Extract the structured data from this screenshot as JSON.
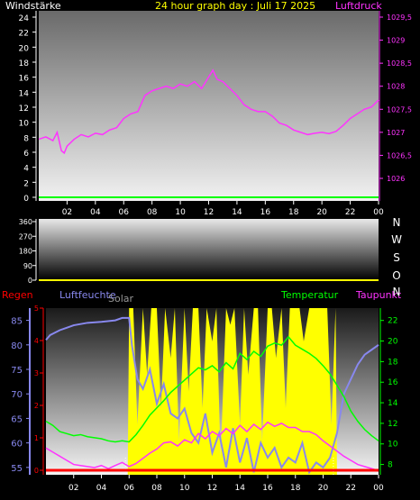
{
  "colors": {
    "wind": "#00ff00",
    "pressure": "#ff33ff",
    "rain": "#ff0000",
    "humidity": "#8888ee",
    "solar": "#ffff00",
    "temperature": "#00ff00",
    "dewpoint": "#ff33ff",
    "axis_white": "#ffffff",
    "yellow_text": "#ffff00"
  },
  "chart_data": [
    {
      "type": "line",
      "title": "24 hour graph day : Juli 17 2025",
      "left_label": "Windstärke",
      "right_label": "Luftdruck",
      "x_ticks": [
        "02",
        "04",
        "06",
        "08",
        "10",
        "12",
        "14",
        "16",
        "18",
        "20",
        "22",
        "00"
      ],
      "y_left_ticks": [
        "0",
        "2",
        "4",
        "6",
        "8",
        "10",
        "12",
        "14",
        "16",
        "18",
        "20",
        "22",
        "24"
      ],
      "y_left_range": [
        0,
        24
      ],
      "y_right_ticks": [
        "1026",
        "1026,5",
        "1027",
        "1027,5",
        "1028",
        "1028,5",
        "1029",
        "1029,5"
      ],
      "y_right_range": [
        1025.75,
        1029.6
      ],
      "grid": false,
      "series": [
        {
          "name": "Windstärke",
          "axis": "left",
          "color": "#00ff00",
          "x": [
            0,
            24
          ],
          "values": [
            0,
            0
          ]
        },
        {
          "name": "Luftdruck",
          "axis": "right",
          "color": "#ff33ff",
          "x": [
            0,
            0.5,
            1,
            1.3,
            1.6,
            1.8,
            2,
            2.5,
            3,
            3.5,
            4,
            4.5,
            5,
            5.5,
            6,
            6.5,
            7,
            7.5,
            8,
            8.5,
            9,
            9.5,
            10,
            10.5,
            11,
            11.5,
            12,
            12.3,
            12.6,
            13,
            13.5,
            14,
            14.5,
            15,
            15.5,
            16,
            16.5,
            17,
            17.5,
            18,
            18.5,
            19,
            19.5,
            20,
            20.5,
            21,
            21.5,
            22,
            22.5,
            23,
            23.5,
            24
          ],
          "values": [
            1026.85,
            1026.9,
            1026.82,
            1027.0,
            1026.6,
            1026.55,
            1026.7,
            1026.85,
            1026.95,
            1026.9,
            1026.98,
            1026.95,
            1027.05,
            1027.1,
            1027.3,
            1027.4,
            1027.45,
            1027.8,
            1027.9,
            1027.95,
            1028.0,
            1027.95,
            1028.05,
            1028.0,
            1028.1,
            1027.95,
            1028.2,
            1028.35,
            1028.15,
            1028.1,
            1027.95,
            1027.8,
            1027.6,
            1027.5,
            1027.45,
            1027.45,
            1027.35,
            1027.2,
            1027.15,
            1027.05,
            1027.0,
            1026.95,
            1026.98,
            1027.0,
            1026.97,
            1027.02,
            1027.15,
            1027.3,
            1027.4,
            1027.5,
            1027.55,
            1027.7
          ]
        }
      ]
    },
    {
      "type": "line",
      "title": "",
      "x_ticks": [],
      "y_left_ticks": [
        "0",
        "90",
        "180",
        "270",
        "360"
      ],
      "y_left_range": [
        0,
        360
      ],
      "y_right_ticks": [
        "N",
        "W",
        "S",
        "O",
        "N"
      ],
      "grid": false,
      "series": [
        {
          "name": "",
          "color": "#ffff00",
          "x": [
            0,
            24
          ],
          "values": [
            0,
            0
          ]
        }
      ]
    },
    {
      "type": "line",
      "title": "",
      "label_rain": "Regen",
      "label_humidity": "Luftfeuchte",
      "label_solar": "Solar",
      "label_temperature": "Temperatur",
      "label_dewpoint": "Taupunkt",
      "x_ticks": [
        "02",
        "04",
        "06",
        "08",
        "10",
        "12",
        "14",
        "16",
        "18",
        "20",
        "22",
        "00"
      ],
      "y_rain_ticks": [
        "0",
        "1",
        "2",
        "3",
        "4",
        "5"
      ],
      "y_humidity_ticks": [
        "55",
        "60",
        "65",
        "70",
        "75",
        "80",
        "85"
      ],
      "y_humidity_range": [
        53.5,
        87.5
      ],
      "y_temp_ticks": [
        "8",
        "10",
        "12",
        "14",
        "16",
        "18",
        "20",
        "22"
      ],
      "y_temp_range": [
        7,
        23.2
      ],
      "grid": false,
      "series": [
        {
          "name": "Regen",
          "axis": "rain",
          "color": "#ff0000",
          "x": [
            0,
            24
          ],
          "values": [
            0,
            0
          ]
        },
        {
          "name": "Solar",
          "axis": "solar",
          "color": "#ffff00",
          "x": [
            0,
            5.9,
            6.0,
            6.3,
            6.6,
            7.0,
            7.3,
            7.6,
            8.0,
            8.3,
            8.6,
            9.0,
            9.3,
            9.6,
            10.0,
            10.3,
            10.6,
            11.0,
            11.3,
            11.6,
            12.0,
            12.3,
            12.6,
            13.0,
            13.3,
            13.6,
            14.0,
            14.3,
            14.6,
            15.0,
            15.3,
            15.6,
            16.0,
            16.3,
            16.6,
            17.0,
            17.3,
            17.6,
            18.0,
            18.3,
            18.6,
            19.0,
            19.3,
            19.6,
            20.0,
            20.3,
            20.6,
            20.9,
            21.0,
            24
          ],
          "values": [
            0,
            0,
            100,
            100,
            30,
            100,
            60,
            100,
            100,
            40,
            100,
            70,
            100,
            20,
            100,
            50,
            100,
            100,
            40,
            100,
            80,
            100,
            10,
            100,
            90,
            100,
            30,
            100,
            60,
            100,
            100,
            20,
            100,
            100,
            70,
            100,
            40,
            100,
            100,
            100,
            80,
            100,
            100,
            100,
            100,
            100,
            30,
            100,
            0,
            0
          ]
        },
        {
          "name": "Luftfeuchte",
          "axis": "humidity",
          "color": "#8888ee",
          "x": [
            0,
            0.3,
            1,
            1.5,
            2,
            3,
            4,
            5,
            5.5,
            6,
            6.2,
            6.6,
            7,
            7.5,
            8,
            8.5,
            9,
            9.5,
            10,
            10.5,
            11,
            11.5,
            12,
            12.5,
            13,
            13.5,
            14,
            14.5,
            15,
            15.5,
            16,
            16.5,
            17,
            17.5,
            18,
            18.5,
            19,
            19.5,
            20,
            20.5,
            21,
            21.5,
            22,
            22.5,
            23,
            23.5,
            24
          ],
          "values": [
            81,
            82,
            83,
            83.5,
            84,
            84.5,
            84.7,
            85,
            85.5,
            85.5,
            80,
            73,
            71,
            75,
            68,
            72,
            66,
            65,
            67,
            62,
            60,
            66,
            58,
            62,
            55,
            63,
            56,
            61,
            54,
            60,
            57,
            59,
            55,
            57,
            56,
            60,
            54,
            56,
            55,
            57,
            62,
            70,
            73,
            76,
            78,
            79,
            80
          ]
        },
        {
          "name": "Temperatur",
          "axis": "temp",
          "color": "#00ff00",
          "x": [
            0,
            0.5,
            1,
            1.5,
            2,
            2.5,
            3,
            3.5,
            4,
            4.5,
            5,
            5.5,
            6,
            6.5,
            7,
            7.5,
            8,
            8.5,
            9,
            9.5,
            10,
            10.5,
            11,
            11.5,
            12,
            12.5,
            13,
            13.5,
            14,
            14.5,
            15,
            15.5,
            16,
            16.5,
            17,
            17.5,
            18,
            18.5,
            19,
            19.5,
            20,
            20.5,
            21,
            21.5,
            22,
            22.5,
            23,
            23.5,
            24
          ],
          "values": [
            12.2,
            11.8,
            11.2,
            11.0,
            10.8,
            10.9,
            10.7,
            10.6,
            10.5,
            10.3,
            10.2,
            10.3,
            10.2,
            10.9,
            11.8,
            12.8,
            13.5,
            14.2,
            15.0,
            15.6,
            16.2,
            16.8,
            17.4,
            17.2,
            17.6,
            17.0,
            17.9,
            17.3,
            18.8,
            18.2,
            19.0,
            18.5,
            19.5,
            19.8,
            19.6,
            20.4,
            19.6,
            19.2,
            18.8,
            18.3,
            17.6,
            16.8,
            15.7,
            14.6,
            13.2,
            12.2,
            11.4,
            10.8,
            10.3
          ]
        },
        {
          "name": "Taupunkt",
          "axis": "temp",
          "color": "#ff33ff",
          "x": [
            0,
            0.5,
            1,
            1.5,
            2,
            2.5,
            3,
            3.5,
            4,
            4.5,
            5,
            5.5,
            6,
            6.5,
            7,
            7.5,
            8,
            8.5,
            9,
            9.5,
            10,
            10.5,
            11,
            11.5,
            12,
            12.5,
            13,
            13.5,
            14,
            14.5,
            15,
            15.5,
            16,
            16.5,
            17,
            17.5,
            18,
            18.5,
            19,
            19.5,
            20,
            20.5,
            21,
            21.5,
            22,
            22.5,
            23,
            23.5,
            24
          ],
          "values": [
            9.6,
            9.2,
            8.8,
            8.4,
            8.0,
            7.9,
            7.8,
            7.7,
            7.9,
            7.6,
            7.9,
            8.2,
            7.8,
            8.1,
            8.6,
            9.1,
            9.5,
            10.1,
            10.2,
            9.8,
            10.4,
            10.1,
            11.0,
            10.5,
            11.2,
            10.8,
            11.5,
            11.0,
            11.8,
            11.2,
            11.9,
            11.4,
            12.1,
            11.7,
            12.0,
            11.6,
            11.6,
            11.2,
            11.2,
            10.9,
            10.3,
            9.8,
            9.3,
            8.8,
            8.4,
            8.0,
            7.8,
            7.6,
            7.4
          ]
        }
      ]
    }
  ]
}
